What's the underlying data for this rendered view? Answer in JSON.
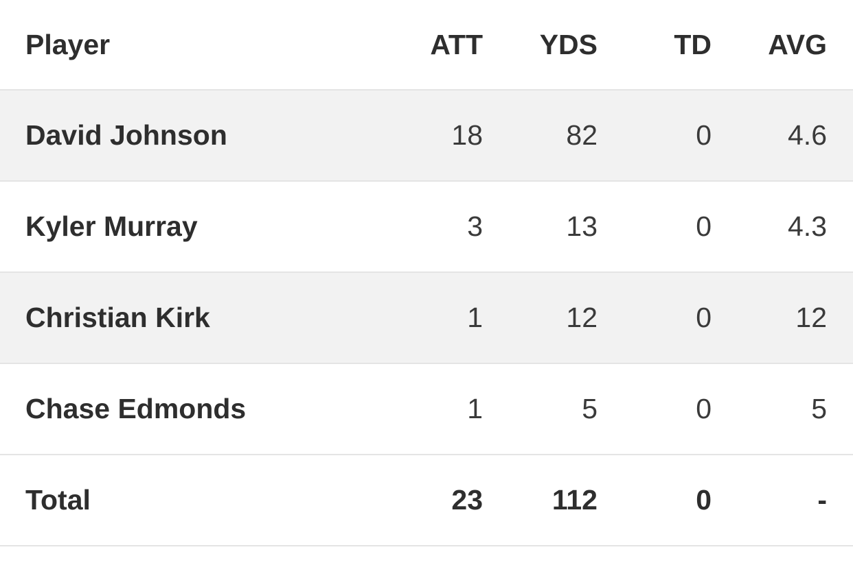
{
  "table": {
    "headers": [
      "Player",
      "ATT",
      "YDS",
      "TD",
      "AVG"
    ],
    "rows": [
      [
        "David Johnson",
        18,
        82,
        0,
        4.6
      ],
      [
        "Kyler Murray",
        3,
        13,
        0,
        4.3
      ],
      [
        "Christian Kirk",
        1,
        12,
        0,
        12
      ],
      [
        "Chase Edmonds",
        1,
        5,
        0,
        5
      ]
    ],
    "total": [
      "Total",
      23,
      112,
      0,
      "-"
    ]
  }
}
